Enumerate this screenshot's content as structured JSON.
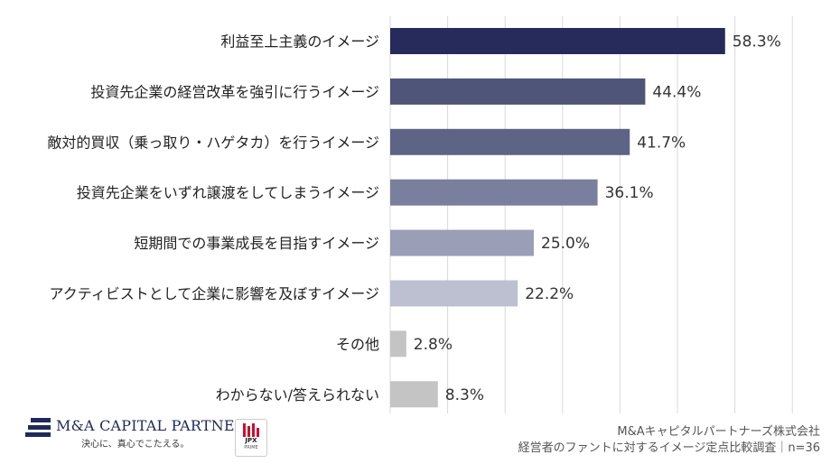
{
  "chart_data": {
    "type": "bar",
    "orientation": "horizontal",
    "categories": [
      "利益至上主義のイメージ",
      "投資先企業の経営改革を強引に行うイメージ",
      "敵対的買収（乗っ取り・ハゲタカ）を行うイメージ",
      "投資先企業をいずれ譲渡をしてしまうイメージ",
      "短期間での事業成長を目指すイメージ",
      "アクティビストとして企業に影響を及ぼすイメージ",
      "その他",
      "わからない/答えられない"
    ],
    "values": [
      58.3,
      44.4,
      41.7,
      36.1,
      25.0,
      22.2,
      2.8,
      8.3
    ],
    "value_labels": [
      "58.3%",
      "44.4%",
      "41.7%",
      "36.1%",
      "25.0%",
      "22.2%",
      "2.8%",
      "8.3%"
    ],
    "bar_colors": [
      "#262b5c",
      "#4f5579",
      "#5e6486",
      "#7a7f9d",
      "#9a9fb7",
      "#bcc0d1",
      "#c4c4c4",
      "#c4c4c4"
    ],
    "xlim": [
      0,
      70
    ],
    "grid": true,
    "title": "",
    "xlabel": "",
    "ylabel": ""
  },
  "footer": {
    "brand_name": "M&A CAPITAL PARTNERS",
    "brand_tagline": "決心に、真心でこたえる。",
    "jpx_label": "JPX",
    "jpx_sub": "PRIME",
    "source_line1": "M&Aキャピタルパートナーズ株式会社",
    "source_line2": "経営者のファントに対するイメージ定点比較調査｜n=36"
  }
}
